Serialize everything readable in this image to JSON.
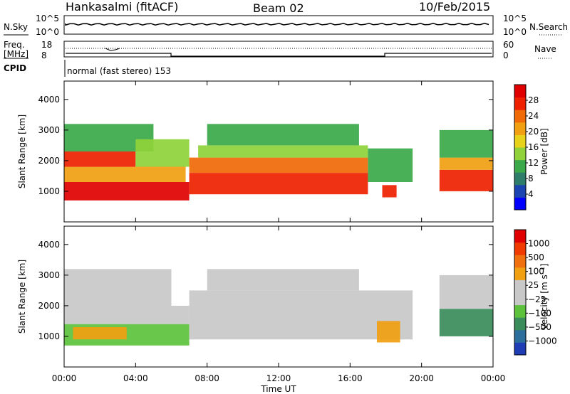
{
  "header": {
    "station": "Hankasalmi (fitACF)",
    "beam": "Beam 02",
    "date": "10/Feb/2015"
  },
  "noise_panel": {
    "left_label": "N.Sky",
    "right_label": "N.Search",
    "left_ticks": [
      "10^5",
      "10^0"
    ],
    "right_ticks": [
      "10^5",
      "10^0"
    ]
  },
  "freq_panel": {
    "left_label_1": "Freq.",
    "left_label_2": "[MHz]",
    "right_label": "Nave",
    "left_ticks": [
      "18",
      "8"
    ],
    "right_ticks": [
      "60",
      "0"
    ]
  },
  "cpid_panel": {
    "label": "CPID",
    "text": "normal (fast stereo) 153"
  },
  "colors": {
    "power": [
      "#0000ff",
      "#1c44b0",
      "#2e7d6a",
      "#3ba94a",
      "#8fd23a",
      "#e8d21a",
      "#f0a010",
      "#f06a08",
      "#ee2000",
      "#e00000"
    ],
    "velocity": [
      "#1f3db5",
      "#2c6e9c",
      "#3a8c5a",
      "#5cc23c",
      "#c8c8c8",
      "#c8c8c8",
      "#f0a010",
      "#f07010",
      "#f03a00",
      "#e00000"
    ]
  },
  "chart_data": [
    {
      "type": "heatmap",
      "name": "power",
      "ylabel": "Slant Range [km]",
      "ylim": [
        0,
        4600
      ],
      "yticks": [
        "1000",
        "2000",
        "3000",
        "4000"
      ],
      "xticks": [
        "00:00",
        "04:00",
        "08:00",
        "12:00",
        "16:00",
        "20:00",
        "00:00"
      ],
      "xlim_hours": [
        0,
        24
      ],
      "colorbar_label": "Power [dB]",
      "colorbar_ticks": [
        "4",
        "8",
        "12",
        "16",
        "20",
        "24",
        "28"
      ],
      "colorbar_range": [
        0,
        32
      ],
      "regions": [
        {
          "t0": 0.0,
          "t1": 7.0,
          "r0": 700,
          "r1": 1300,
          "v": 30
        },
        {
          "t0": 0.0,
          "t1": 6.8,
          "r0": 1300,
          "r1": 1800,
          "v": 22
        },
        {
          "t0": 0.0,
          "t1": 4.0,
          "r0": 1800,
          "r1": 2300,
          "v": 26
        },
        {
          "t0": 0.0,
          "t1": 5.0,
          "r0": 2300,
          "r1": 3200,
          "v": 12
        },
        {
          "t0": 4.0,
          "t1": 7.0,
          "r0": 1800,
          "r1": 2700,
          "v": 14
        },
        {
          "t0": 7.0,
          "t1": 17.0,
          "r0": 900,
          "r1": 1600,
          "v": 28
        },
        {
          "t0": 7.0,
          "t1": 17.0,
          "r0": 1600,
          "r1": 2100,
          "v": 24
        },
        {
          "t0": 7.5,
          "t1": 17.0,
          "r0": 2100,
          "r1": 2500,
          "v": 14
        },
        {
          "t0": 8.0,
          "t1": 16.5,
          "r0": 2500,
          "r1": 3200,
          "v": 10
        },
        {
          "t0": 17.0,
          "t1": 19.5,
          "r0": 1300,
          "r1": 2400,
          "v": 12
        },
        {
          "t0": 17.8,
          "t1": 18.6,
          "r0": 800,
          "r1": 1200,
          "v": 28
        },
        {
          "t0": 21.0,
          "t1": 24.0,
          "r0": 1000,
          "r1": 1700,
          "v": 28
        },
        {
          "t0": 21.0,
          "t1": 24.0,
          "r0": 1700,
          "r1": 2100,
          "v": 20
        },
        {
          "t0": 21.0,
          "t1": 24.0,
          "r0": 2100,
          "r1": 3000,
          "v": 10
        }
      ]
    },
    {
      "type": "heatmap",
      "name": "velocity",
      "ylabel": "Slant Range [km]",
      "ylim": [
        0,
        4600
      ],
      "yticks": [
        "1000",
        "2000",
        "3000",
        "4000"
      ],
      "xticks": [
        "00:00",
        "04:00",
        "08:00",
        "12:00",
        "16:00",
        "20:00",
        "00:00"
      ],
      "xlabel": "Time UT",
      "xlim_hours": [
        0,
        24
      ],
      "colorbar_label": "Velocity [m s⁻¹]",
      "colorbar_ticks": [
        "1000",
        "500",
        "100",
        "25",
        "−25",
        "−100",
        "−500",
        "−1000"
      ],
      "regions": [
        {
          "t0": 0.0,
          "t1": 7.0,
          "r0": 700,
          "r1": 1400,
          "v": 3
        },
        {
          "t0": 0.0,
          "t1": 7.0,
          "r0": 1400,
          "r1": 2000,
          "v": 4
        },
        {
          "t0": 0.0,
          "t1": 6.0,
          "r0": 2000,
          "r1": 3200,
          "v": 4
        },
        {
          "t0": 0.5,
          "t1": 3.5,
          "r0": 900,
          "r1": 1300,
          "v": 6
        },
        {
          "t0": 7.0,
          "t1": 19.5,
          "r0": 900,
          "r1": 2500,
          "v": 4
        },
        {
          "t0": 8.0,
          "t1": 16.5,
          "r0": 2500,
          "r1": 3200,
          "v": 5
        },
        {
          "t0": 17.5,
          "t1": 18.8,
          "r0": 800,
          "r1": 1500,
          "v": 6
        },
        {
          "t0": 21.0,
          "t1": 24.0,
          "r0": 1000,
          "r1": 1900,
          "v": 2
        },
        {
          "t0": 21.0,
          "t1": 24.0,
          "r0": 1900,
          "r1": 3000,
          "v": 4
        }
      ]
    }
  ]
}
